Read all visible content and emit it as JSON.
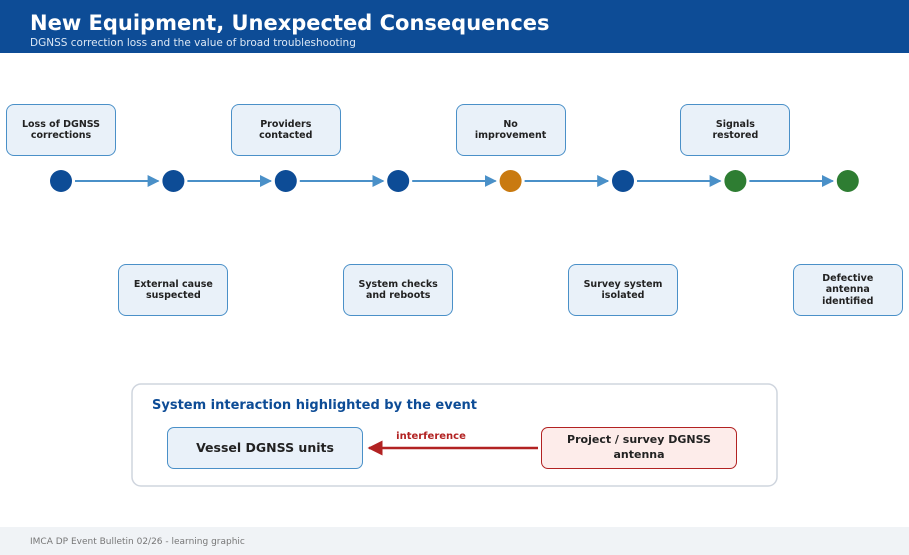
{
  "header": {
    "title": "New Equipment, Unexpected Consequences",
    "subtitle": "DGNSS correction loss and the value of broad troubleshooting"
  },
  "timeline": {
    "steps": [
      {
        "label": "Loss of DGNSS corrections"
      },
      {
        "label": "External cause suspected"
      },
      {
        "label": "Providers contacted"
      },
      {
        "label": "System checks and reboots"
      },
      {
        "label": "No improvement"
      },
      {
        "label": "Survey system isolated"
      },
      {
        "label": "Signals restored"
      },
      {
        "label": "Defective antenna identified"
      }
    ]
  },
  "diagram": {
    "title": "System interaction highlighted by the event",
    "nodes": [
      {
        "label": "Vessel DGNSS units"
      },
      {
        "label": "Project / survey DGNSS antenna"
      }
    ],
    "edge": {
      "label": "interference"
    }
  },
  "footer": {
    "text": "IMCA DP Event Bulletin 02/26 - learning graphic"
  }
}
